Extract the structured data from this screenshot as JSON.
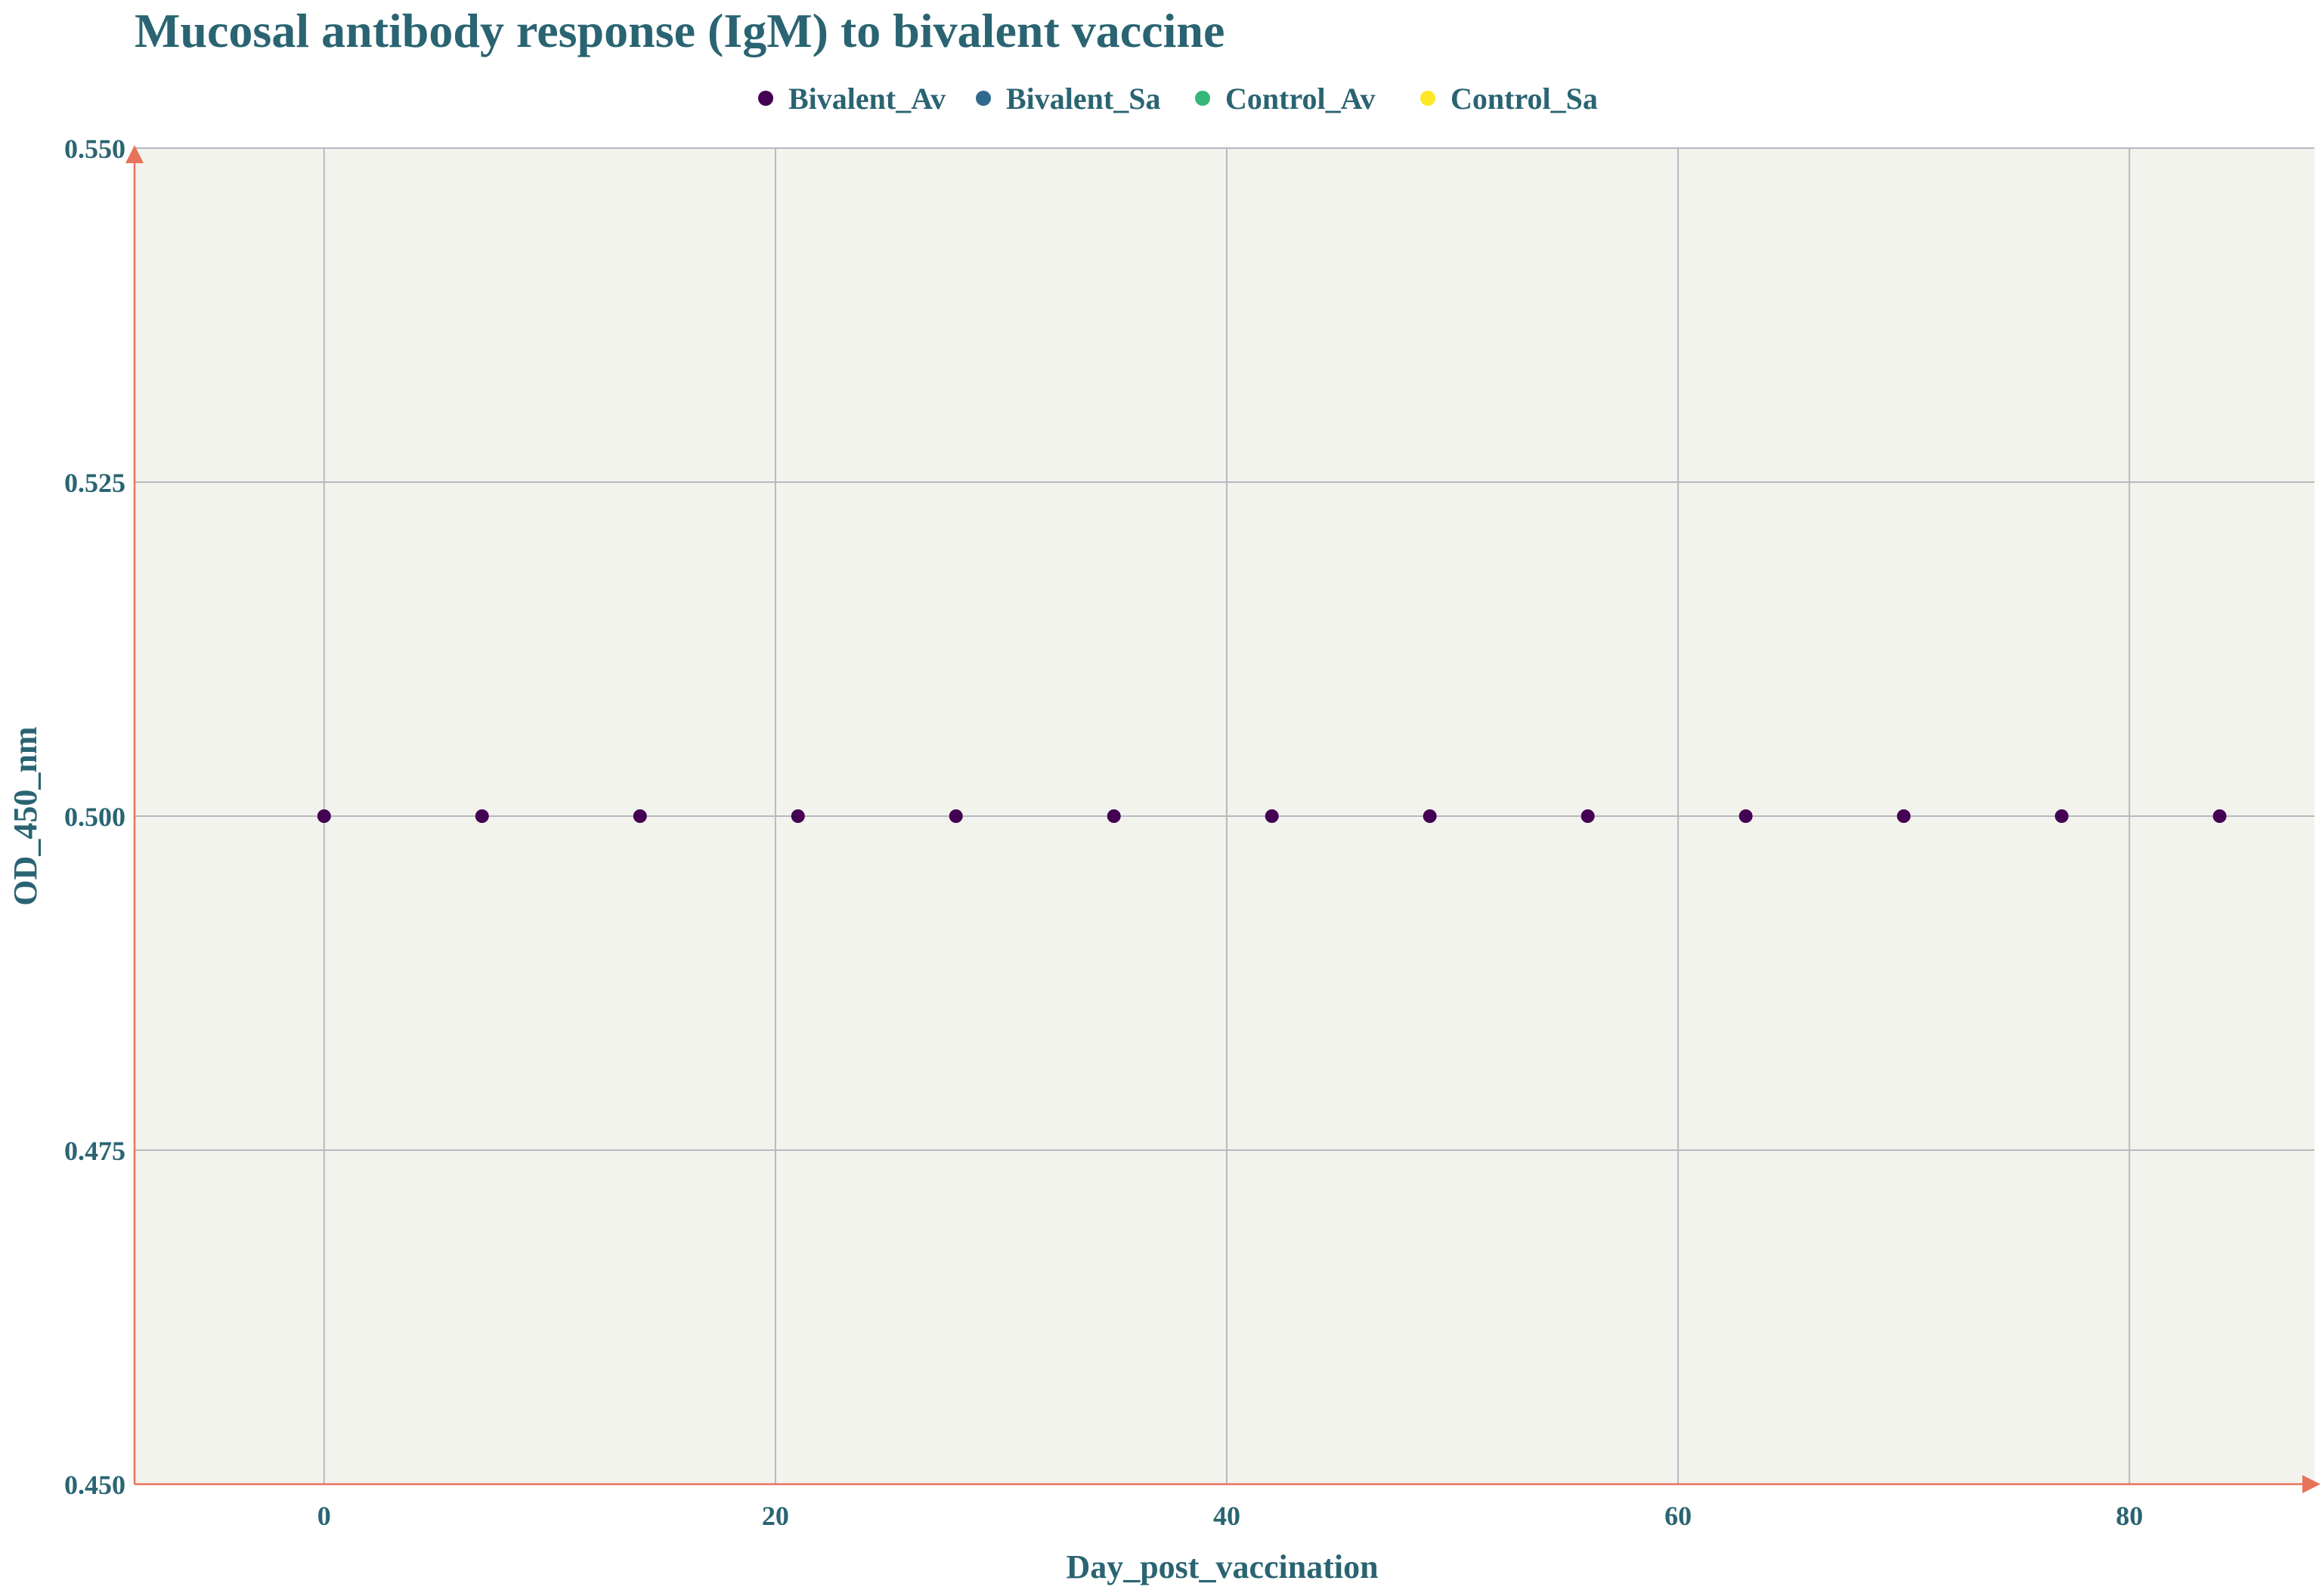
{
  "colors": {
    "text": "#2a6472",
    "plot_bg": "#f3f3ee",
    "grid": "#b7b9c0",
    "axis": "#e8735a",
    "series": [
      "#440154",
      "#31688e",
      "#35b779",
      "#fde725"
    ]
  },
  "chart_data": {
    "type": "scatter",
    "title": "Mucosal antibody response (IgM) to bivalent vaccine",
    "xlabel": "Day_post_vaccination",
    "ylabel": "OD_450_nm",
    "xlim": [
      -8.4,
      88.2
    ],
    "ylim": [
      0.45,
      0.55
    ],
    "xticks": [
      0,
      20,
      40,
      60,
      80
    ],
    "xtick_labels": [
      "0",
      "20",
      "40",
      "60",
      "80"
    ],
    "yticks": [
      0.45,
      0.475,
      0.5,
      0.525,
      0.55
    ],
    "ytick_labels": [
      "0.450",
      "0.475",
      "0.500",
      "0.525",
      "0.550"
    ],
    "grid": true,
    "legend_position": "top-center",
    "series": [
      {
        "name": "Bivalent_Av",
        "x": [
          0,
          7,
          14,
          21,
          28,
          35,
          42,
          49,
          56,
          63,
          70,
          77,
          84
        ],
        "y": [
          0.5,
          0.5,
          0.5,
          0.5,
          0.5,
          0.5,
          0.5,
          0.5,
          0.5,
          0.5,
          0.5,
          0.5,
          0.5
        ]
      },
      {
        "name": "Bivalent_Sa",
        "x": [],
        "y": []
      },
      {
        "name": "Control_Av",
        "x": [],
        "y": []
      },
      {
        "name": "Control_Sa",
        "x": [],
        "y": []
      }
    ]
  }
}
